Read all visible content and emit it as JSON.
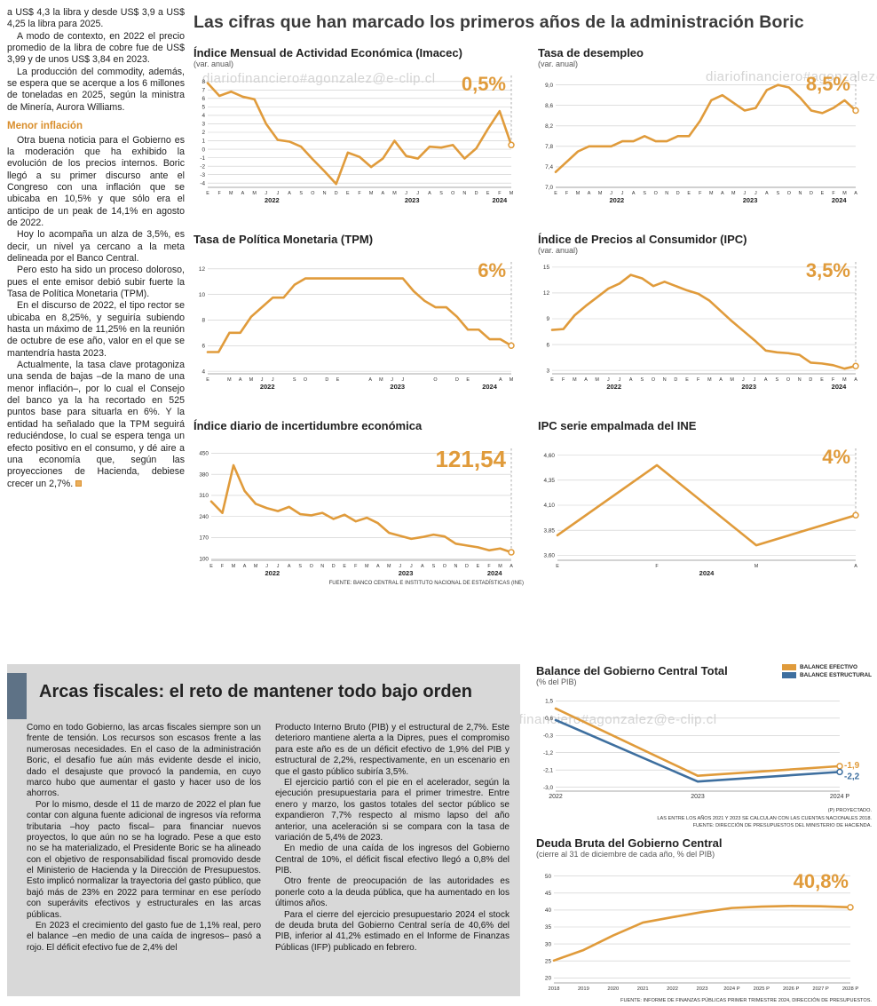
{
  "accent_orange": "#E09B3B",
  "accent_blue": "#3E6F9F",
  "watermark": "diariofinanciero#agonzalez@e-clip.cl",
  "main_title": "Las cifras que han marcado los primeros años de la administración Boric",
  "left_column": {
    "paragraphs": [
      "a US$ 4,3 la libra y desde US$ 3,9 a US$ 4,25 la libra para 2025.",
      "A modo de contexto, en 2022 el precio promedio de la libra de cobre fue de US$ 3,99 y de unos US$ 3,84 en 2023.",
      "La producción del commodity, además, se espera que se acerque a los 6 millones de toneladas en 2025, según la ministra de Minería, Aurora Williams.",
      "Otra buena noticia para el Gobierno es la moderación que ha exhibido la evolución de los precios internos. Boric llegó a su primer discurso ante el Congreso con una inflación que se ubicaba en 10,5% y que sólo era el anticipo de un peak de 14,1% en agosto de 2022.",
      "Hoy lo acompaña un alza de 3,5%, es decir, un nivel ya cercano a la meta delineada por el Banco Central.",
      "Pero esto ha sido un proceso doloroso, pues el ente emisor debió subir fuerte la Tasa de Política Monetaria (TPM).",
      "En el discurso de 2022, el tipo rector se ubicaba en 8,25%, y seguiría subiendo hasta un máximo de 11,25% en la reunión de octubre de ese año, valor en el que se mantendría hasta 2023.",
      "Actualmente, la tasa clave protagoniza una senda de bajas –de la mano de una menor inflación–, por lo cual el Consejo del banco ya la ha recortado en 525 puntos base para situarla en 6%. Y la entidad ha señalado que la TPM seguirá reduciéndose, lo cual se espera tenga un efecto positivo en el consumo, y dé aire a una economía que, según las proyecciones de Hacienda, debiese crecer un 2,7%."
    ],
    "heading": "Menor inflación"
  },
  "source_note_top": "FUENTE: BANCO CENTRAL E INSTITUTO NACIONAL DE ESTADÍSTICAS (INE)",
  "fiscal": {
    "heading": "Arcas fiscales: el reto de mantener todo bajo orden",
    "col1": [
      "Como en todo Gobierno, las arcas fiscales siempre son un frente de tensión. Los recursos son escasos frente a las numerosas necesidades. En el caso de la administración Boric, el desafío fue aún más evidente desde el inicio, dado el desajuste que provocó la pandemia, en cuyo marco hubo que aumentar el gasto y hacer uso de los ahorros.",
      "Por lo mismo, desde el 11 de marzo de 2022 el plan fue contar con alguna fuente adicional de ingresos vía reforma tributaria –hoy pacto fiscal– para financiar nuevos proyectos, lo que aún no se ha logrado. Pese a que esto no se ha materializado, el Presidente Boric se ha alineado con el objetivo de responsabilidad fiscal promovido desde el Ministerio de Hacienda y la Dirección de Presupuestos. Esto implicó normalizar la trayectoria del gasto público, que bajó más de 23% en 2022 para terminar en ese período con superávits efectivos y estructurales en las arcas públicas.",
      "En 2023 el crecimiento del gasto fue de 1,1% real, pero el balance –en medio de una caída de ingresos– pasó a rojo. El déficit efectivo fue de 2,4% del"
    ],
    "col2": [
      "Producto Interno Bruto (PIB) y el estructural de 2,7%. Este deterioro mantiene alerta a la Dipres, pues el compromiso para este año es de un déficit efectivo de 1,9% del PIB y estructural de 2,2%, respectivamente, en un escenario en que el gasto público subiría 3,5%.",
      "El ejercicio partió con el pie en el acelerador, según la ejecución presupuestaria para el primer trimestre. Entre enero y marzo, los gastos totales del sector público se expandieron 7,7% respecto al mismo lapso del año anterior, una aceleración si se compara con la tasa de variación de 5,4% de 2023.",
      "En medio de una caída de los ingresos del Gobierno Central de 10%, el déficit fiscal efectivo llegó a 0,8% del PIB.",
      "Otro frente de preocupación de las autoridades es ponerle coto a la deuda pública, que ha aumentado en los últimos años.",
      "Para el cierre del ejercicio presupuestario 2024 el stock de deuda bruta del Gobierno Central sería de 40,6% del PIB, inferior al 41,2% estimado en el Informe de Finanzas Públicas (IFP) publicado en febrero."
    ]
  },
  "chart_data": {
    "imacec": {
      "type": "line",
      "title": "Índice Mensual de Actividad Económica (Imacec)",
      "subtitle": "(var. anual)",
      "value_label": "0,5%",
      "x_labels": [
        "E",
        "F",
        "M",
        "A",
        "M",
        "J",
        "J",
        "A",
        "S",
        "O",
        "N",
        "D",
        "E",
        "F",
        "M",
        "A",
        "M",
        "J",
        "J",
        "A",
        "S",
        "O",
        "N",
        "D",
        "E",
        "F",
        "M"
      ],
      "years": [
        {
          "label": "2022",
          "from": 0,
          "to": 11
        },
        {
          "label": "2023",
          "from": 12,
          "to": 23
        },
        {
          "label": "2024",
          "from": 24,
          "to": 26
        }
      ],
      "ylim": [
        -4.5,
        8.5
      ],
      "y_ticks": [
        {
          "v": 8,
          "l": "8"
        },
        {
          "v": 7,
          "l": "7"
        },
        {
          "v": 6,
          "l": "6"
        },
        {
          "v": 5,
          "l": "5"
        },
        {
          "v": 4,
          "l": "4"
        },
        {
          "v": 3,
          "l": "3"
        },
        {
          "v": 2,
          "l": "2"
        },
        {
          "v": 1,
          "l": "1"
        },
        {
          "v": 0,
          "l": "0"
        },
        {
          "v": -1,
          "l": "-1"
        },
        {
          "v": -2,
          "l": "-2"
        },
        {
          "v": -3,
          "l": "-3"
        },
        {
          "v": -4,
          "l": "-4"
        }
      ],
      "series": [
        {
          "name": "Imacec",
          "color": "#E09B3B",
          "values": [
            7.8,
            6.3,
            6.8,
            6.2,
            5.9,
            3.0,
            1.1,
            0.9,
            0.3,
            -1.2,
            -2.6,
            -4.1,
            -0.4,
            -0.9,
            -2.1,
            -1.1,
            1.0,
            -0.8,
            -1.1,
            0.3,
            0.2,
            0.5,
            -1.1,
            0.1,
            2.4,
            4.5,
            0.5
          ],
          "end_marker": true,
          "dash_to_top": true
        }
      ]
    },
    "desempleo": {
      "type": "line",
      "title": "Tasa de desempleo",
      "subtitle": "(var. anual)",
      "value_label": "8,5%",
      "x_labels": [
        "E",
        "F",
        "M",
        "A",
        "M",
        "J",
        "J",
        "A",
        "S",
        "O",
        "N",
        "D",
        "E",
        "F",
        "M",
        "A",
        "M",
        "J",
        "J",
        "A",
        "S",
        "O",
        "N",
        "D",
        "E",
        "F",
        "M",
        "A"
      ],
      "years": [
        {
          "label": "2022",
          "from": 0,
          "to": 11
        },
        {
          "label": "2023",
          "from": 12,
          "to": 23
        },
        {
          "label": "2024",
          "from": 24,
          "to": 27
        }
      ],
      "ylim": [
        7.0,
        9.15
      ],
      "y_ticks": [
        {
          "v": 9.0,
          "l": "9,0"
        },
        {
          "v": 8.6,
          "l": "8,6"
        },
        {
          "v": 8.2,
          "l": "8,2"
        },
        {
          "v": 7.8,
          "l": "7,8"
        },
        {
          "v": 7.4,
          "l": "7,4"
        },
        {
          "v": 7.0,
          "l": "7,0"
        }
      ],
      "series": [
        {
          "name": "Tasa de desempleo",
          "color": "#E09B3B",
          "values": [
            7.3,
            7.5,
            7.7,
            7.8,
            7.8,
            7.8,
            7.9,
            7.9,
            8.0,
            7.9,
            7.9,
            8.0,
            8.0,
            8.3,
            8.7,
            8.8,
            8.65,
            8.5,
            8.55,
            8.9,
            9.0,
            8.95,
            8.75,
            8.5,
            8.45,
            8.55,
            8.7,
            8.5
          ],
          "end_marker": true,
          "dash_to_top": true
        }
      ]
    },
    "tpm": {
      "type": "line",
      "title": "Tasa de Política Monetaria (TPM)",
      "subtitle": "",
      "value_label": "6%",
      "x_labels": [
        "E",
        "",
        "M",
        "A",
        "M",
        "J",
        "J",
        "",
        "S",
        "O",
        "",
        "D",
        "E",
        "",
        "",
        "A",
        "M",
        "J",
        "J",
        "",
        "",
        "O",
        "",
        "D",
        "E",
        "",
        "",
        "A",
        "M"
      ],
      "years": [
        {
          "label": "2022",
          "from": 0,
          "to": 11
        },
        {
          "label": "2023",
          "from": 12,
          "to": 23
        },
        {
          "label": "2024",
          "from": 24,
          "to": 28
        }
      ],
      "ylim": [
        3.8,
        12.4
      ],
      "y_ticks": [
        {
          "v": 12,
          "l": "12"
        },
        {
          "v": 10,
          "l": "10"
        },
        {
          "v": 8,
          "l": "8"
        },
        {
          "v": 6,
          "l": "6"
        },
        {
          "v": 4,
          "l": "4"
        }
      ],
      "series": [
        {
          "name": "TPM",
          "color": "#E09B3B",
          "values": [
            5.5,
            5.5,
            7.0,
            7.0,
            8.25,
            9.0,
            9.75,
            9.75,
            10.75,
            11.25,
            11.25,
            11.25,
            11.25,
            11.25,
            11.25,
            11.25,
            11.25,
            11.25,
            11.25,
            10.25,
            9.5,
            9.0,
            9.0,
            8.25,
            7.25,
            7.25,
            6.5,
            6.5,
            6.0
          ],
          "end_marker": true,
          "dash_to_top": true
        }
      ]
    },
    "ipc": {
      "type": "line",
      "title": "Índice de Precios al Consumidor (IPC)",
      "subtitle": "(var. anual)",
      "value_label": "3,5%",
      "x_labels": [
        "E",
        "F",
        "M",
        "A",
        "M",
        "J",
        "J",
        "A",
        "S",
        "O",
        "N",
        "D",
        "E",
        "F",
        "M",
        "A",
        "M",
        "J",
        "J",
        "A",
        "S",
        "O",
        "N",
        "D",
        "E",
        "F",
        "M",
        "A"
      ],
      "years": [
        {
          "label": "2022",
          "from": 0,
          "to": 11
        },
        {
          "label": "2023",
          "from": 12,
          "to": 23
        },
        {
          "label": "2024",
          "from": 24,
          "to": 27
        }
      ],
      "ylim": [
        2.6,
        15.4
      ],
      "y_ticks": [
        {
          "v": 15,
          "l": "15"
        },
        {
          "v": 12,
          "l": "12"
        },
        {
          "v": 9,
          "l": "9"
        },
        {
          "v": 6,
          "l": "6"
        },
        {
          "v": 3,
          "l": "3"
        }
      ],
      "series": [
        {
          "name": "IPC",
          "color": "#E09B3B",
          "values": [
            7.7,
            7.8,
            9.4,
            10.5,
            11.5,
            12.5,
            13.1,
            14.1,
            13.7,
            12.8,
            13.3,
            12.8,
            12.3,
            11.9,
            11.1,
            9.9,
            8.7,
            7.6,
            6.5,
            5.3,
            5.1,
            5.0,
            4.8,
            3.9,
            3.8,
            3.6,
            3.2,
            3.5
          ],
          "end_marker": true,
          "dash_to_top": true
        }
      ]
    },
    "incertidumbre": {
      "type": "line",
      "title": "Índice diario de incertidumbre económica",
      "subtitle": "",
      "value_label": "121,54",
      "x_labels": [
        "E",
        "F",
        "M",
        "A",
        "M",
        "J",
        "J",
        "A",
        "S",
        "O",
        "N",
        "D",
        "E",
        "F",
        "M",
        "A",
        "M",
        "J",
        "J",
        "A",
        "S",
        "O",
        "N",
        "D",
        "E",
        "F",
        "M",
        "A"
      ],
      "years": [
        {
          "label": "2022",
          "from": 0,
          "to": 11
        },
        {
          "label": "2023",
          "from": 12,
          "to": 23
        },
        {
          "label": "2024",
          "from": 24,
          "to": 27
        }
      ],
      "ylim": [
        95,
        460
      ],
      "y_ticks": [
        {
          "v": 450,
          "l": "450"
        },
        {
          "v": 380,
          "l": "380"
        },
        {
          "v": 310,
          "l": "310"
        },
        {
          "v": 240,
          "l": "240"
        },
        {
          "v": 170,
          "l": "170"
        },
        {
          "v": 100,
          "l": "100"
        }
      ],
      "series": [
        {
          "name": "Incertidumbre económica",
          "color": "#E09B3B",
          "values": [
            290,
            252,
            410,
            325,
            282,
            268,
            258,
            272,
            248,
            244,
            252,
            232,
            246,
            224,
            236,
            218,
            186,
            176,
            166,
            172,
            180,
            174,
            150,
            144,
            138,
            128,
            134,
            121.54
          ],
          "end_marker": true,
          "dash_to_top": true
        }
      ]
    },
    "ipc_ine": {
      "type": "line",
      "title": "IPC serie empalmada del INE",
      "subtitle": "",
      "value_label": "4%",
      "x_labels": [
        "E",
        "F",
        "M",
        "A"
      ],
      "years": [
        {
          "label": "2024",
          "from": 0,
          "to": 3
        }
      ],
      "ylim": [
        3.55,
        4.65
      ],
      "y_ticks": [
        {
          "v": 4.6,
          "l": "4,60"
        },
        {
          "v": 4.35,
          "l": "4,35"
        },
        {
          "v": 4.1,
          "l": "4,10"
        },
        {
          "v": 3.85,
          "l": "3,85"
        },
        {
          "v": 3.6,
          "l": "3,60"
        }
      ],
      "series": [
        {
          "name": "IPC serie empalmada",
          "color": "#E09B3B",
          "values": [
            3.8,
            4.5,
            3.7,
            4.0
          ],
          "end_marker": true,
          "dash_to_top": true
        }
      ]
    },
    "balance": {
      "type": "line",
      "title": "Balance del Gobierno Central Total",
      "subtitle": "(% del PIB)",
      "x_labels": [
        "2022",
        "2023",
        "2024 P"
      ],
      "ylim": [
        -3.2,
        1.7
      ],
      "y_ticks": [
        {
          "v": 1.5,
          "l": "1,5"
        },
        {
          "v": 0.6,
          "l": "0,6"
        },
        {
          "v": -0.3,
          "l": "-0,3"
        },
        {
          "v": -1.2,
          "l": "-1,2"
        },
        {
          "v": -2.1,
          "l": "-2,1"
        },
        {
          "v": -3.0,
          "l": "-3,0"
        }
      ],
      "legend": [
        {
          "label": "BALANCE EFECTIVO",
          "color": "#E09B3B"
        },
        {
          "label": "BALANCE ESTRUCTURAL",
          "color": "#3E6F9F"
        }
      ],
      "series": [
        {
          "name": "Balance efectivo",
          "color": "#E09B3B",
          "values": [
            1.1,
            -2.4,
            -1.9
          ],
          "end_marker": true,
          "end_label": "-1,9",
          "end_label_dy": 2
        },
        {
          "name": "Balance estructural",
          "color": "#3E6F9F",
          "values": [
            0.5,
            -2.7,
            -2.2
          ],
          "end_marker": true,
          "end_label": "-2,2",
          "end_label_dy": 8
        }
      ],
      "notes": [
        "(P) PROYECTADO.",
        "LAS ENTRE LOS AÑOS 2021 Y 2023 SE CALCULAN  CON LAS CUENTAS NACIONALES 2018.",
        "FUENTE: DIRECCIÓN DE PRESUPUESTOS DEL MINISTERIO DE HACIENDA."
      ]
    },
    "deuda": {
      "type": "line",
      "title": "Deuda Bruta del Gobierno Central",
      "subtitle": "(cierre al 31 de diciembre de cada año, % del PIB)",
      "value_label": "40,8%",
      "x_labels": [
        "2018",
        "2019",
        "2020",
        "2021",
        "2022",
        "2023",
        "2024 P",
        "2025 P",
        "2026 P",
        "2027 P",
        "2028 P"
      ],
      "ylim": [
        18.5,
        51.5
      ],
      "y_ticks": [
        {
          "v": 50,
          "l": "50"
        },
        {
          "v": 45,
          "l": "45"
        },
        {
          "v": 40,
          "l": "40"
        },
        {
          "v": 35,
          "l": "35"
        },
        {
          "v": 30,
          "l": "30"
        },
        {
          "v": 25,
          "l": "25"
        },
        {
          "v": 20,
          "l": "20"
        }
      ],
      "series": [
        {
          "name": "Deuda bruta",
          "color": "#E09B3B",
          "values": [
            25.1,
            28.2,
            32.5,
            36.3,
            37.9,
            39.4,
            40.6,
            41.0,
            41.2,
            41.1,
            40.8
          ],
          "end_marker": true
        }
      ],
      "source": "FUENTE: INFORME DE FINANZAS PÚBLICAS PRIMER TRIMESTRE 2024, DIRECCIÓN DE PRESUPUESTOS."
    }
  }
}
